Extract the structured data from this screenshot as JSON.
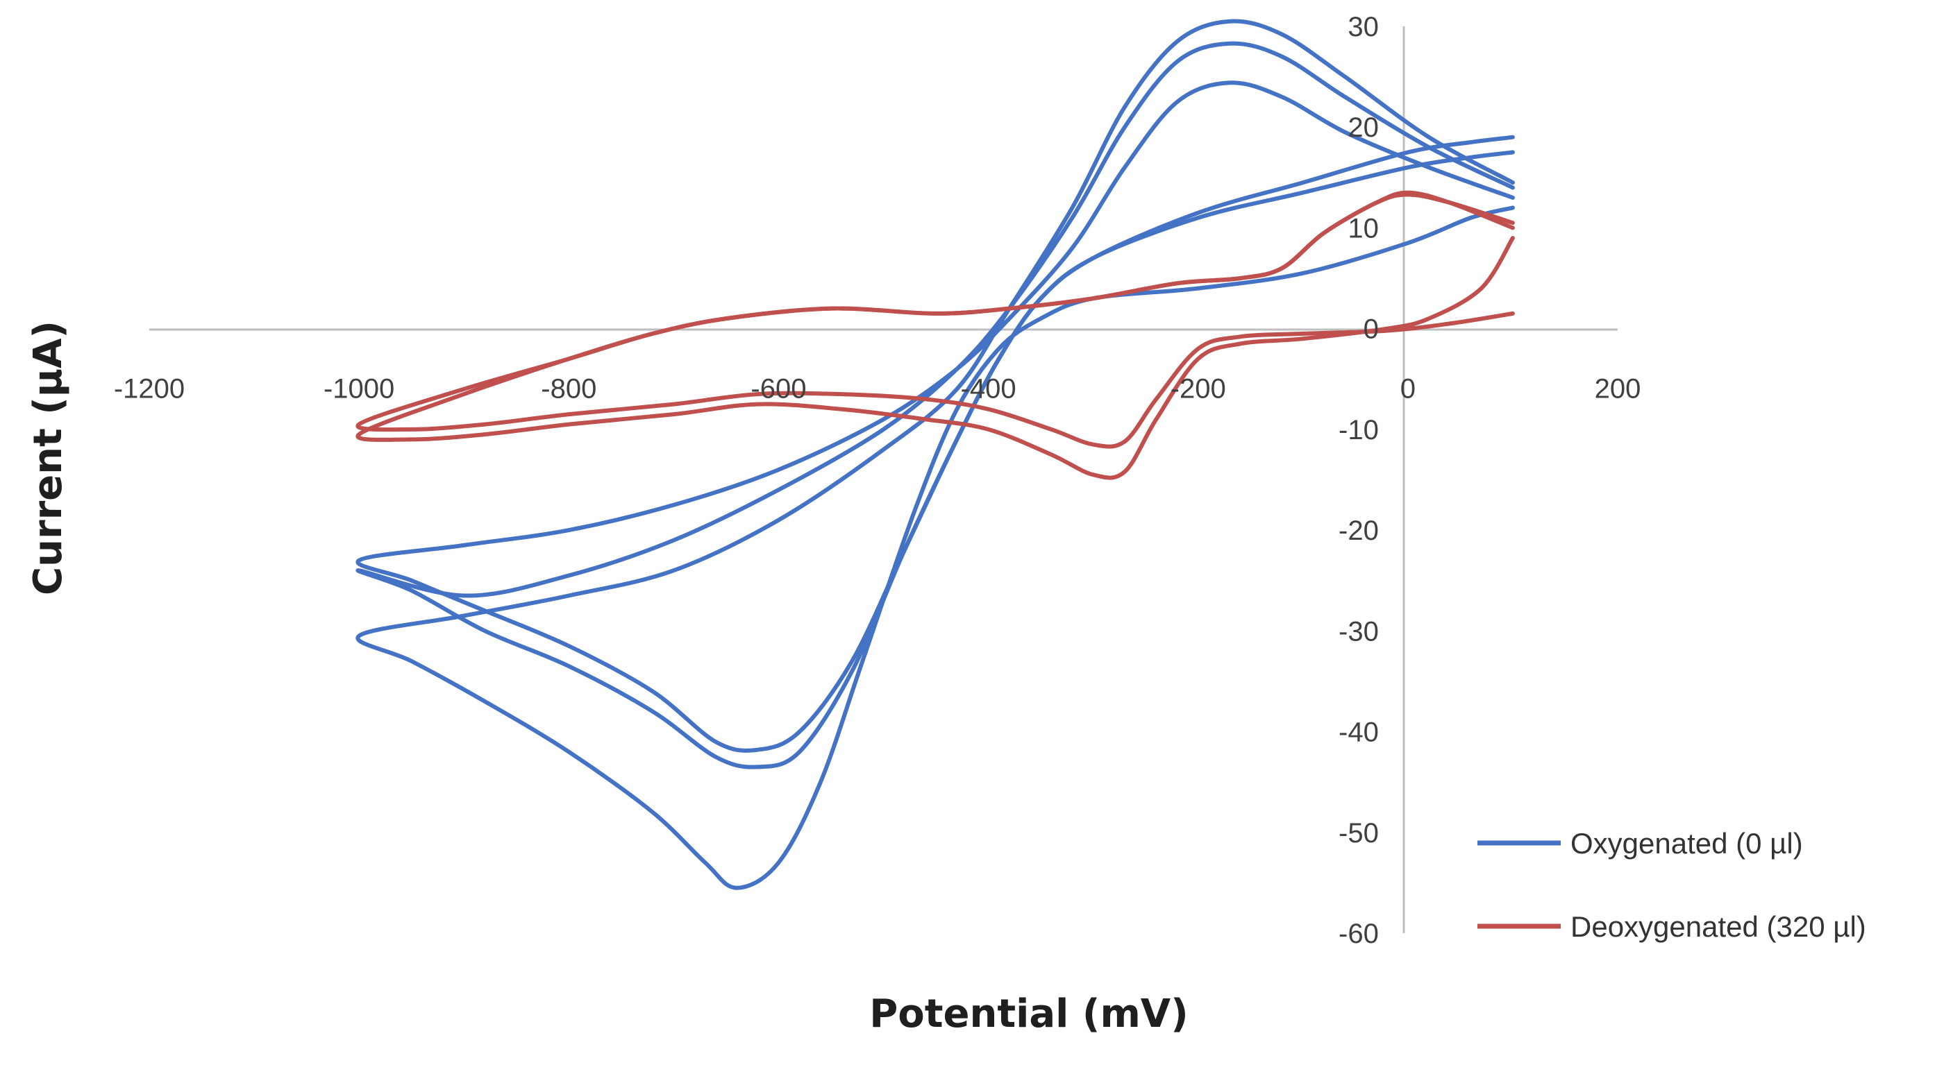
{
  "chart_data": {
    "type": "line",
    "title": "",
    "xlabel": "Potential (mV)",
    "ylabel": "Current (μA)",
    "xlim": [
      -1200,
      200
    ],
    "ylim": [
      -60,
      30
    ],
    "x_ticks": [
      -1200,
      -1000,
      -800,
      -600,
      -400,
      -200,
      0,
      200
    ],
    "y_ticks": [
      30,
      20,
      10,
      0,
      -10,
      -20,
      -30,
      -40,
      -50,
      -60
    ],
    "grid": false,
    "legend_position": "bottom-right",
    "series": [
      {
        "name": "Oxygenated (0 µl)",
        "color": "#4472c4",
        "cycles": [
          [
            [
              100,
              13
            ],
            [
              20,
              16
            ],
            [
              -60,
              19.5
            ],
            [
              -120,
              23
            ],
            [
              -170,
              24.4
            ],
            [
              -220,
              22.5
            ],
            [
              -270,
              16
            ],
            [
              -320,
              8
            ],
            [
              -380,
              1
            ],
            [
              -430,
              -4
            ],
            [
              -500,
              -9
            ],
            [
              -600,
              -14
            ],
            [
              -700,
              -17.5
            ],
            [
              -800,
              -20
            ],
            [
              -900,
              -21.5
            ],
            [
              -1000,
              -23
            ],
            [
              -950,
              -25
            ],
            [
              -880,
              -28
            ],
            [
              -800,
              -31.5
            ],
            [
              -720,
              -36
            ],
            [
              -660,
              -41
            ],
            [
              -620,
              -41.8
            ],
            [
              -580,
              -40
            ],
            [
              -530,
              -33
            ],
            [
              -480,
              -22
            ],
            [
              -430,
              -11
            ],
            [
              -390,
              -3
            ],
            [
              -350,
              3
            ],
            [
              -300,
              7
            ],
            [
              -200,
              11
            ],
            [
              -100,
              13.5
            ],
            [
              0,
              16
            ],
            [
              60,
              17
            ],
            [
              100,
              17.5
            ]
          ],
          [
            [
              100,
              14
            ],
            [
              20,
              18
            ],
            [
              -60,
              23
            ],
            [
              -120,
              27
            ],
            [
              -170,
              28.3
            ],
            [
              -220,
              26.5
            ],
            [
              -270,
              20
            ],
            [
              -320,
              11
            ],
            [
              -380,
              2
            ],
            [
              -430,
              -4
            ],
            [
              -500,
              -10
            ],
            [
              -600,
              -16
            ],
            [
              -700,
              -21
            ],
            [
              -800,
              -24.5
            ],
            [
              -900,
              -26.5
            ],
            [
              -1000,
              -24
            ],
            [
              -950,
              -26
            ],
            [
              -880,
              -30
            ],
            [
              -800,
              -33.5
            ],
            [
              -720,
              -38
            ],
            [
              -660,
              -42.5
            ],
            [
              -620,
              -43.5
            ],
            [
              -580,
              -42
            ],
            [
              -530,
              -34
            ],
            [
              -480,
              -22
            ],
            [
              -430,
              -11
            ],
            [
              -390,
              -3
            ],
            [
              -350,
              3
            ],
            [
              -300,
              7
            ],
            [
              -200,
              11.5
            ],
            [
              -100,
              14.5
            ],
            [
              0,
              17.5
            ],
            [
              60,
              18.5
            ],
            [
              100,
              19
            ]
          ],
          [
            [
              100,
              14.5
            ],
            [
              20,
              19
            ],
            [
              -60,
              25
            ],
            [
              -120,
              29.2
            ],
            [
              -170,
              30.5
            ],
            [
              -220,
              28.5
            ],
            [
              -270,
              22
            ],
            [
              -320,
              12
            ],
            [
              -380,
              2
            ],
            [
              -430,
              -6
            ],
            [
              -500,
              -12
            ],
            [
              -600,
              -19
            ],
            [
              -700,
              -24
            ],
            [
              -800,
              -26.5
            ],
            [
              -900,
              -28.5
            ],
            [
              -1000,
              -30.5
            ],
            [
              -950,
              -33
            ],
            [
              -880,
              -37
            ],
            [
              -800,
              -42
            ],
            [
              -720,
              -48
            ],
            [
              -670,
              -53
            ],
            [
              -640,
              -55.5
            ],
            [
              -600,
              -53
            ],
            [
              -560,
              -45
            ],
            [
              -520,
              -33
            ],
            [
              -470,
              -18
            ],
            [
              -430,
              -8
            ],
            [
              -390,
              -2
            ],
            [
              -350,
              1
            ],
            [
              -300,
              3
            ],
            [
              -200,
              4
            ],
            [
              -100,
              5.5
            ],
            [
              0,
              8.5
            ],
            [
              60,
              11
            ],
            [
              100,
              12
            ]
          ]
        ]
      },
      {
        "name": "Deoxygenated (320 µl)",
        "color": "#c0504d",
        "cycles": [
          [
            [
              100,
              10.5
            ],
            [
              40,
              12.5
            ],
            [
              0,
              13.3
            ],
            [
              -30,
              12.5
            ],
            [
              -80,
              9.5
            ],
            [
              -120,
              6
            ],
            [
              -160,
              5
            ],
            [
              -220,
              4.5
            ],
            [
              -300,
              3
            ],
            [
              -380,
              2
            ],
            [
              -450,
              1.5
            ],
            [
              -550,
              2
            ],
            [
              -650,
              1
            ],
            [
              -720,
              -0.5
            ],
            [
              -800,
              -3
            ],
            [
              -900,
              -6
            ],
            [
              -1000,
              -9.5
            ],
            [
              -950,
              -10
            ],
            [
              -880,
              -9.5
            ],
            [
              -800,
              -8.5
            ],
            [
              -700,
              -7.5
            ],
            [
              -620,
              -6.5
            ],
            [
              -540,
              -6.5
            ],
            [
              -460,
              -7
            ],
            [
              -400,
              -8
            ],
            [
              -340,
              -10
            ],
            [
              -300,
              -11.5
            ],
            [
              -270,
              -11.2
            ],
            [
              -240,
              -7
            ],
            [
              -200,
              -2
            ],
            [
              -160,
              -0.8
            ],
            [
              -100,
              -0.5
            ],
            [
              -20,
              -0.2
            ],
            [
              40,
              0.5
            ],
            [
              100,
              1.5
            ]
          ],
          [
            [
              100,
              10
            ],
            [
              40,
              12.5
            ],
            [
              0,
              13.5
            ],
            [
              -30,
              12.5
            ],
            [
              -80,
              9.5
            ],
            [
              -120,
              6
            ],
            [
              -160,
              5
            ],
            [
              -220,
              4.5
            ],
            [
              -300,
              3
            ],
            [
              -380,
              2
            ],
            [
              -450,
              1.5
            ],
            [
              -550,
              2
            ],
            [
              -650,
              1
            ],
            [
              -720,
              -0.5
            ],
            [
              -800,
              -3
            ],
            [
              -900,
              -6.5
            ],
            [
              -1000,
              -10.5
            ],
            [
              -950,
              -11
            ],
            [
              -880,
              -10.5
            ],
            [
              -800,
              -9.5
            ],
            [
              -700,
              -8.5
            ],
            [
              -620,
              -7.5
            ],
            [
              -540,
              -8
            ],
            [
              -460,
              -9
            ],
            [
              -400,
              -10
            ],
            [
              -340,
              -12.5
            ],
            [
              -300,
              -14.5
            ],
            [
              -270,
              -14.2
            ],
            [
              -240,
              -9
            ],
            [
              -200,
              -3
            ],
            [
              -160,
              -1.5
            ],
            [
              -100,
              -1
            ],
            [
              -20,
              0
            ],
            [
              20,
              1
            ],
            [
              70,
              4
            ],
            [
              100,
              9
            ]
          ]
        ]
      }
    ]
  }
}
